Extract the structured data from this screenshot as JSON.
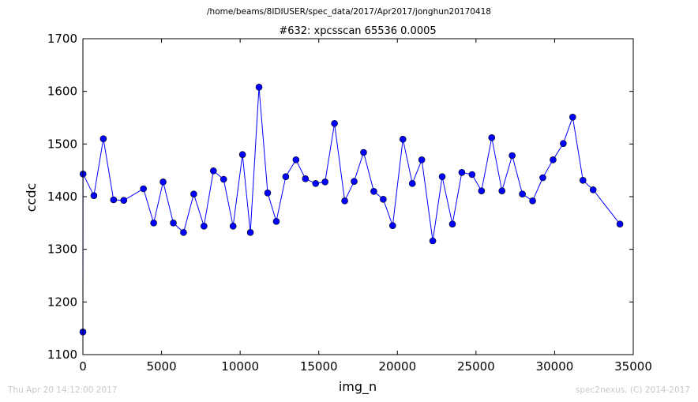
{
  "suptitle": "/home/beams/8IDIUSER/spec_data/2017/Apr2017/jonghun20170418",
  "footer": {
    "left": "Thu Apr 20 14:12:00 2017",
    "right": "spec2nexus, (C) 2014-2017"
  },
  "chart_data": {
    "type": "line",
    "title": "#632: xpcsscan 65536 0.0005",
    "xlabel": "img_n",
    "ylabel": "ccdc",
    "xlim": [
      0,
      35000
    ],
    "ylim": [
      1100,
      1700
    ],
    "xticks": [
      0,
      5000,
      10000,
      15000,
      20000,
      25000,
      30000,
      35000
    ],
    "yticks": [
      1100,
      1200,
      1300,
      1400,
      1500,
      1600,
      1700
    ],
    "grid": false,
    "legend": "none",
    "colors": {
      "line": "#0000ff",
      "marker": "#0000ff"
    },
    "series": [
      {
        "x": [
          0,
          10,
          700,
          1300,
          1950,
          2600,
          3850,
          4500,
          5100,
          5750,
          6400,
          7050,
          7700,
          8300,
          8950,
          9550,
          10150,
          10650,
          11200,
          11750,
          12300,
          12900,
          13550,
          14150,
          14800,
          15400,
          16000,
          16650,
          17250,
          17850,
          18500,
          19100,
          19700,
          20350,
          20950,
          21550,
          22250,
          22850,
          23500,
          24100,
          24750,
          25350,
          26000,
          26650,
          27300,
          27950,
          28600,
          29250,
          29900,
          30550,
          31150,
          31800,
          32450,
          34150
        ],
        "y": [
          1143,
          1443,
          1402,
          1510,
          1394,
          1393,
          1415,
          1350,
          1428,
          1350,
          1332,
          1405,
          1344,
          1449,
          1433,
          1344,
          1480,
          1332,
          1608,
          1407,
          1353,
          1438,
          1470,
          1434,
          1425,
          1428,
          1539,
          1392,
          1429,
          1484,
          1410,
          1395,
          1345,
          1509,
          1425,
          1470,
          1316,
          1438,
          1348,
          1446,
          1442,
          1411,
          1512,
          1411,
          1478,
          1405,
          1392,
          1436,
          1470,
          1501,
          1551,
          1431,
          1413,
          1348
        ]
      }
    ]
  }
}
